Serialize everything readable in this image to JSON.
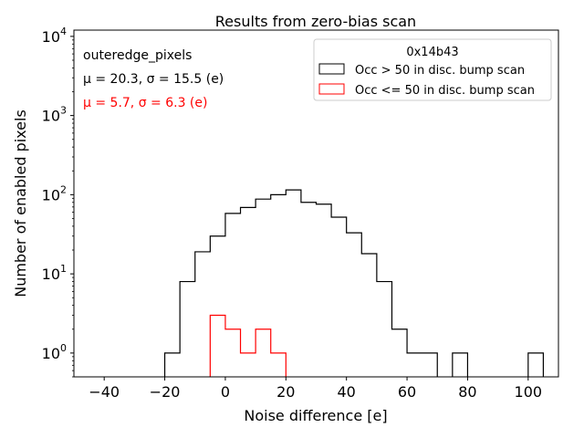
{
  "chart_data": {
    "type": "histogram",
    "title": "Results from zero-bias scan",
    "xlabel": "Noise difference [e]",
    "ylabel": "Number of enabled pixels",
    "xlim": [
      -50,
      110
    ],
    "ylim": [
      0.5,
      12000
    ],
    "yscale": "log",
    "xticks": [
      {
        "value": -40,
        "label": "−40"
      },
      {
        "value": -20,
        "label": "−20"
      },
      {
        "value": 0,
        "label": "0"
      },
      {
        "value": 20,
        "label": "20"
      },
      {
        "value": 40,
        "label": "40"
      },
      {
        "value": 60,
        "label": "60"
      },
      {
        "value": 80,
        "label": "80"
      },
      {
        "value": 100,
        "label": "100"
      }
    ],
    "yticks": [
      {
        "value": 1,
        "base": "10",
        "exp": "0"
      },
      {
        "value": 10,
        "base": "10",
        "exp": "1"
      },
      {
        "value": 100,
        "base": "10",
        "exp": "2"
      },
      {
        "value": 1000,
        "base": "10",
        "exp": "3"
      },
      {
        "value": 10000,
        "base": "10",
        "exp": "4"
      }
    ],
    "annotations": {
      "group": "outeredge_pixels",
      "stats_black": "μ = 20.3, σ = 15.5 (e)",
      "stats_red": "μ = 5.7, σ = 6.3 (e)"
    },
    "legend": {
      "title": "0x14b43",
      "placement": "top-right",
      "entries": [
        "Occ > 50 in disc. bump scan",
        "Occ <= 50 in disc. bump scan"
      ]
    },
    "series": [
      {
        "name": "Occ > 50 in disc. bump scan",
        "color": "#000000",
        "bin_width": 5,
        "bins": [
          {
            "x0": -20,
            "count": 1
          },
          {
            "x0": -15,
            "count": 8
          },
          {
            "x0": -10,
            "count": 19
          },
          {
            "x0": -5,
            "count": 30
          },
          {
            "x0": 0,
            "count": 58
          },
          {
            "x0": 5,
            "count": 69
          },
          {
            "x0": 10,
            "count": 88
          },
          {
            "x0": 15,
            "count": 100
          },
          {
            "x0": 20,
            "count": 115
          },
          {
            "x0": 25,
            "count": 80
          },
          {
            "x0": 30,
            "count": 76
          },
          {
            "x0": 35,
            "count": 52
          },
          {
            "x0": 40,
            "count": 33
          },
          {
            "x0": 45,
            "count": 18
          },
          {
            "x0": 50,
            "count": 8
          },
          {
            "x0": 55,
            "count": 2
          },
          {
            "x0": 60,
            "count": 1
          },
          {
            "x0": 65,
            "count": 1
          },
          {
            "x0": 75,
            "count": 1
          },
          {
            "x0": 100,
            "count": 1
          }
        ]
      },
      {
        "name": "Occ <= 50 in disc. bump scan",
        "color": "#ff0000",
        "bin_width": 5,
        "bins": [
          {
            "x0": -5,
            "count": 3
          },
          {
            "x0": 0,
            "count": 2
          },
          {
            "x0": 5,
            "count": 1
          },
          {
            "x0": 10,
            "count": 2
          },
          {
            "x0": 15,
            "count": 1
          }
        ]
      }
    ]
  }
}
